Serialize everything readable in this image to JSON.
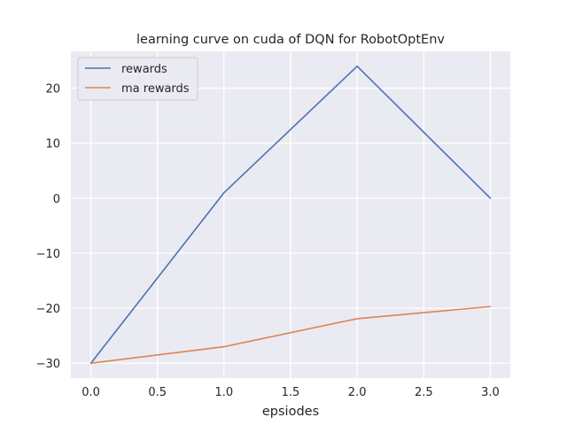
{
  "chart_data": {
    "type": "line",
    "title": "learning curve on cuda of DQN for RobotOptEnv",
    "xlabel": "epsiodes",
    "ylabel": "",
    "x": [
      0,
      1,
      2,
      3
    ],
    "series": [
      {
        "name": "rewards",
        "values": [
          -30,
          1,
          24,
          0
        ],
        "color": "#4c72b0"
      },
      {
        "name": "ma rewards",
        "values": [
          -30,
          -27,
          -21.9,
          -19.7
        ],
        "color": "#dd8452"
      }
    ],
    "xlim": [
      -0.15,
      3.15
    ],
    "ylim": [
      -32.7,
      26.7
    ],
    "xticks": [
      0,
      0.5,
      1,
      1.5,
      2,
      2.5,
      3
    ],
    "xtick_labels": [
      "0.0",
      "0.5",
      "1.0",
      "1.5",
      "2.0",
      "2.5",
      "3.0"
    ],
    "yticks": [
      -30,
      -20,
      -10,
      0,
      10,
      20
    ],
    "ytick_labels": [
      "−30",
      "−20",
      "−10",
      "0",
      "10",
      "20"
    ],
    "grid": true,
    "legend_position": "top-left",
    "background_color": "#eaeaf2",
    "grid_color": "#ffffff"
  }
}
